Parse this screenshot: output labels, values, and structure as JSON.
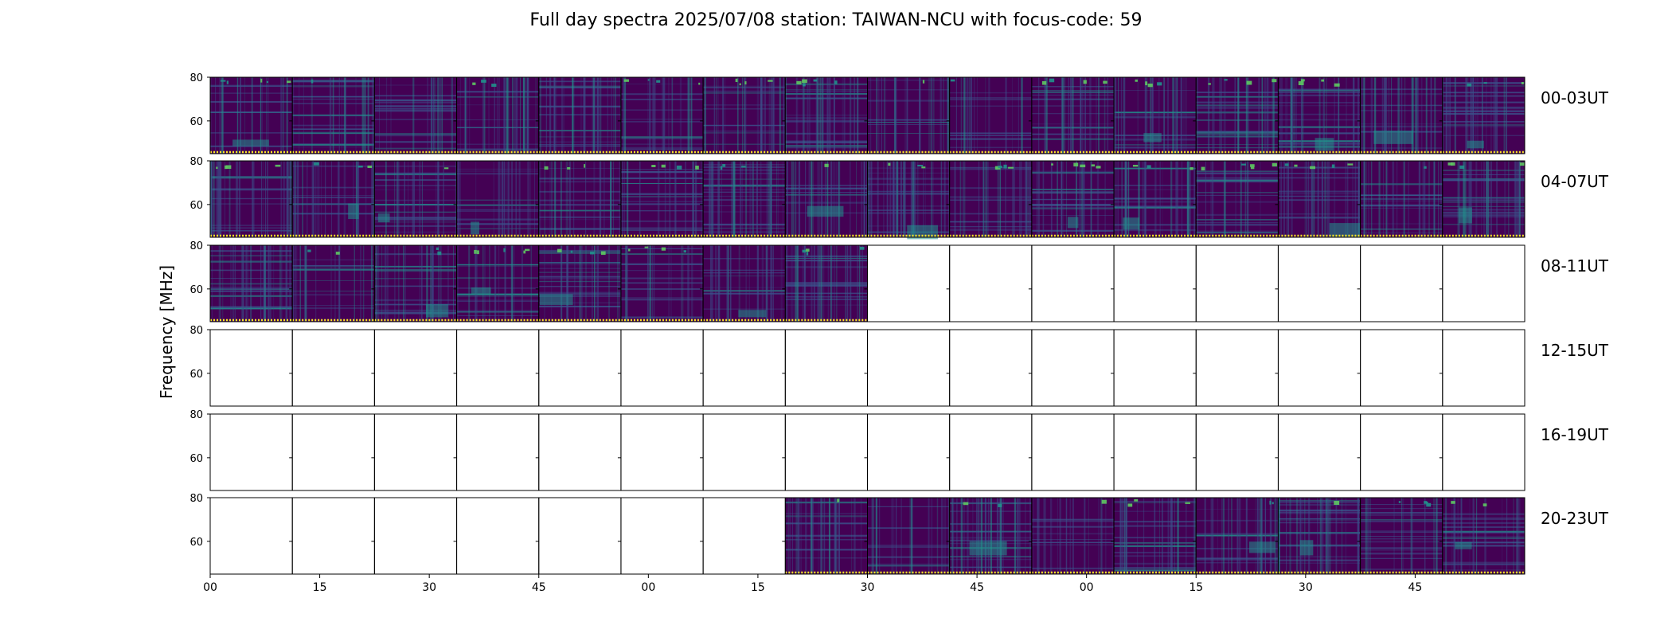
{
  "chart_data": {
    "type": "heatmap",
    "title": "Full day spectra 2025/07/08 station: TAIWAN-NCU with focus-code: 59",
    "ylabel": "Frequency [MHz]",
    "ylim": [
      45,
      80
    ],
    "yticks": [
      60,
      80
    ],
    "xtick_labels": [
      "00",
      "15",
      "30",
      "45",
      "00",
      "15",
      "30",
      "45",
      "00",
      "15",
      "30",
      "45"
    ],
    "colormap": "viridis",
    "colors": {
      "background": "#440154",
      "mid": "#3b528b",
      "teal": "#21918c",
      "green": "#5ec962",
      "yellow": "#fde725"
    },
    "rows": [
      {
        "label": "00-03UT",
        "panels_with_data": [
          0,
          1,
          2,
          3,
          4,
          5,
          6,
          7,
          8,
          9,
          10,
          11,
          12,
          13,
          14,
          15
        ]
      },
      {
        "label": "04-07UT",
        "panels_with_data": [
          0,
          1,
          2,
          3,
          4,
          5,
          6,
          7,
          8,
          9,
          10,
          11,
          12,
          13,
          14,
          15
        ]
      },
      {
        "label": "08-11UT",
        "panels_with_data": [
          0,
          1,
          2,
          3,
          4,
          5,
          6,
          7
        ]
      },
      {
        "label": "12-15UT",
        "panels_with_data": []
      },
      {
        "label": "16-19UT",
        "panels_with_data": []
      },
      {
        "label": "20-23UT",
        "panels_with_data": [
          7,
          8,
          9,
          10,
          11,
          12,
          13,
          14,
          15
        ]
      }
    ]
  }
}
